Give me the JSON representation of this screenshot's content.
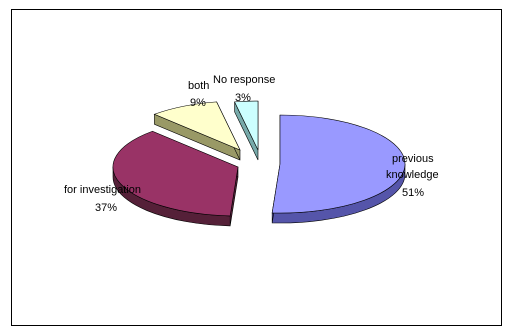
{
  "chart_data": {
    "type": "pie",
    "style": "3d-exploded",
    "title": "",
    "slices": [
      {
        "label_lines": [
          "previous",
          "knowledge"
        ],
        "percent_label": "51%",
        "value": 51,
        "color": "#9999FF",
        "side_color": "#5555AA"
      },
      {
        "label_lines": [
          "for investigation"
        ],
        "percent_label": "37%",
        "value": 37,
        "color": "#993366",
        "side_color": "#552038"
      },
      {
        "label_lines": [
          "both"
        ],
        "percent_label": "9%",
        "value": 9,
        "color": "#FFFFCC",
        "side_color": "#999966"
      },
      {
        "label_lines": [
          "No response"
        ],
        "percent_label": "3%",
        "value": 3,
        "color": "#CCFFFF",
        "side_color": "#77AAAA"
      }
    ],
    "legend": "none"
  }
}
